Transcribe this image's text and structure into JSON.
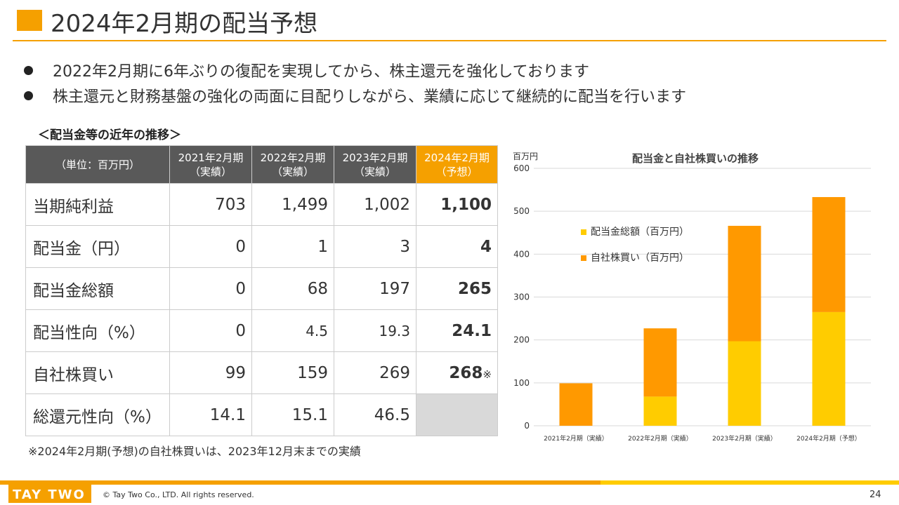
{
  "title": "2024年2月期の配当予想",
  "bullets": [
    "2022年2月期に6年ぶりの復配を実現してから、株主還元を強化しております",
    "株主還元と財務基盤の強化の両面に目配りしながら、業績に応じて継続的に配当を行います"
  ],
  "table_section_title": "＜配当金等の近年の推移＞",
  "table": {
    "corner": "（単位：百万円）",
    "columns": [
      {
        "line1": "2021年2月期",
        "line2": "（実績）"
      },
      {
        "line1": "2022年2月期",
        "line2": "（実績）"
      },
      {
        "line1": "2023年2月期",
        "line2": "（実績）"
      },
      {
        "line1": "2024年2月期",
        "line2": "（予想）"
      }
    ],
    "rows": [
      {
        "label": "当期純利益",
        "values": [
          "703",
          "1,499",
          "1,002",
          "1,100"
        ]
      },
      {
        "label": "配当金（円）",
        "values": [
          "0",
          "1",
          "3",
          "4"
        ]
      },
      {
        "label": "配当金総額",
        "values": [
          "0",
          "68",
          "197",
          "265"
        ]
      },
      {
        "label": "配当性向（%）",
        "values": [
          "0",
          "4.5",
          "19.3",
          "24.1"
        ]
      },
      {
        "label": "自社株買い",
        "values": [
          "99",
          "159",
          "269",
          "268"
        ],
        "note_mark": "※"
      },
      {
        "label": "総還元性向（%）",
        "values": [
          "14.1",
          "15.1",
          "46.5",
          ""
        ]
      }
    ]
  },
  "footnote": "※2024年2月期(予想)の自社株買いは、2023年12月末までの実績",
  "colors": {
    "accent": "#f5a000",
    "dividend": "#ffcc00",
    "buyback": "#ff9900",
    "header_gray": "#595959"
  },
  "chart_data": {
    "type": "bar",
    "stacked": true,
    "title": "配当金と自社株買いの推移",
    "ylabel": "百万円",
    "ylim": [
      0,
      600
    ],
    "yticks": [
      0,
      100,
      200,
      300,
      400,
      500,
      600
    ],
    "grid": true,
    "legend_position": "upper-left",
    "categories": [
      "2021年2月期（実績）",
      "2022年2月期（実績）",
      "2023年2月期（実績）",
      "2024年2月期（予想）"
    ],
    "series": [
      {
        "name": "配当金総額（百万円）",
        "values": [
          0,
          68,
          197,
          265
        ],
        "color": "#ffcc00"
      },
      {
        "name": "自社株買い（百万円）",
        "values": [
          99,
          159,
          269,
          268
        ],
        "color": "#ff9900"
      }
    ]
  },
  "footer": {
    "logo_text": "TAY TWO",
    "copyright": "© Tay Two Co., LTD. All rights reserved.",
    "page_number": "24"
  }
}
